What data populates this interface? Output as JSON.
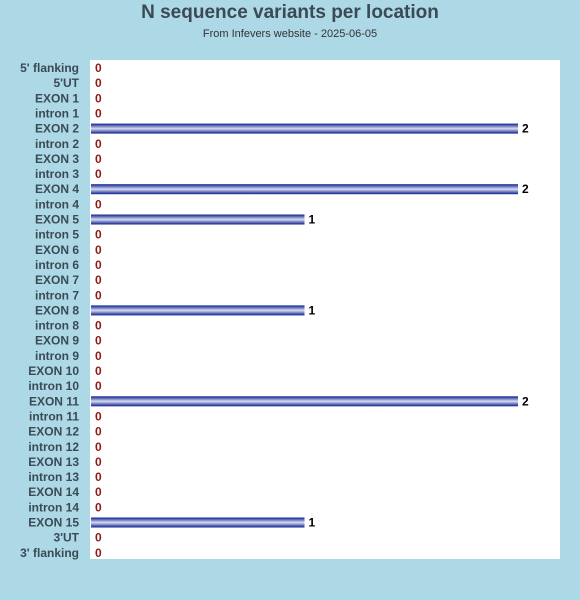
{
  "title": "N sequence variants per location",
  "subtitle": "From Infevers website - 2025-06-05",
  "colors": {
    "background": "#add8e6",
    "plot_background": "#ffffff",
    "bar_dark": "#0a1f8f",
    "bar_light": "#d8dcf0",
    "zero_label": "#8b1a1a",
    "value_label": "#000000"
  },
  "chart_data": {
    "type": "bar",
    "orientation": "horizontal",
    "title": "N sequence variants per location",
    "subtitle": "From Infevers website - 2025-06-05",
    "categories": [
      "5' flanking",
      "5'UT",
      "EXON 1",
      "intron 1",
      "EXON 2",
      "intron 2",
      "EXON 3",
      "intron 3",
      "EXON 4",
      "intron 4",
      "EXON 5",
      "intron 5",
      "EXON 6",
      "intron 6",
      "EXON 7",
      "intron 7",
      "EXON 8",
      "intron 8",
      "EXON 9",
      "intron 9",
      "EXON 10",
      "intron 10",
      "EXON 11",
      "intron 11",
      "EXON 12",
      "intron 12",
      "EXON 13",
      "intron 13",
      "EXON 14",
      "intron 14",
      "EXON 15",
      "3'UT",
      "3' flanking"
    ],
    "values": [
      0,
      0,
      0,
      0,
      2,
      0,
      0,
      0,
      2,
      0,
      1,
      0,
      0,
      0,
      0,
      0,
      1,
      0,
      0,
      0,
      0,
      0,
      2,
      0,
      0,
      0,
      0,
      0,
      0,
      0,
      1,
      0,
      0
    ],
    "xlim": [
      0,
      2
    ],
    "grid": false,
    "legend": "none"
  }
}
